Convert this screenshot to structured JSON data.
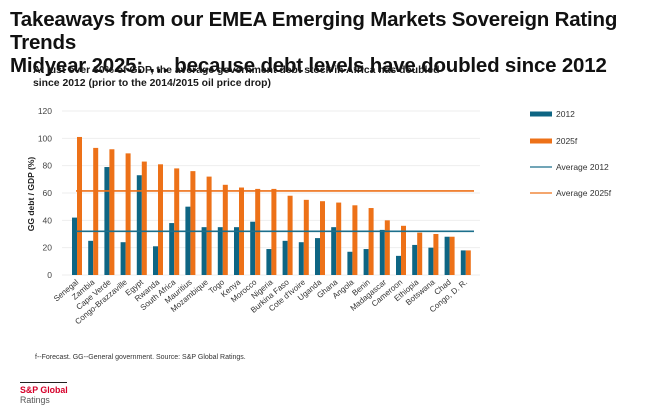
{
  "page": {
    "title_line1": "Takeaways from our EMEA Emerging Markets Sovereign Rating Trends",
    "title_line2": "Midyear 2025: … because debt levels have doubled since 2012",
    "subtitle_line1": "At just over 60% of GDP,  the average government debt stock in Africa has doubled",
    "subtitle_line2": "since 2012 (prior to the 2014/2015 oil price drop)",
    "footnote": "f--Forecast. GG--General government. Source: S&P Global Ratings.",
    "logo_top": "S&P Global",
    "logo_bottom": "Ratings"
  },
  "colors": {
    "series_2012": "#0e6583",
    "series_2025f": "#ed7118",
    "avg_2012": "#1c6f8c",
    "avg_2025f": "#ed7118",
    "grid": "#eeeeee",
    "brand_red": "#d6002a"
  },
  "chart_data": {
    "type": "bar",
    "title": "At just over 60% of GDP, the average government debt stock in Africa has doubled since 2012 (prior to the 2014/2015 oil price drop)",
    "xlabel": "",
    "ylabel": "GG debt / GDP (%)",
    "ylim": [
      0,
      120
    ],
    "yticks": [
      0,
      20,
      40,
      60,
      80,
      100,
      120
    ],
    "grid": true,
    "legend_position": "right",
    "categories": [
      "Senegal",
      "Zambia",
      "Cape Verde",
      "Congo-Brazzaville",
      "Egypt",
      "Rwanda",
      "South Africa",
      "Mauritius",
      "Mozambique",
      "Togo",
      "Kenya",
      "Morocco",
      "Nigeria",
      "Burkina Faso",
      "Cote d'Ivoire",
      "Uganda",
      "Ghana",
      "Angola",
      "Benin",
      "Madagascar",
      "Cameroon",
      "Ethiopia",
      "Botswana",
      "Chad",
      "Congo, D. R."
    ],
    "series": [
      {
        "name": "2012",
        "kind": "bar",
        "values": [
          42,
          25,
          79,
          24,
          73,
          21,
          38,
          50,
          35,
          35,
          35,
          39,
          19,
          25,
          24,
          27,
          35,
          17,
          19,
          33,
          14,
          22,
          20,
          28,
          18
        ]
      },
      {
        "name": "2025f",
        "kind": "bar",
        "values": [
          101,
          93,
          92,
          89,
          83,
          81,
          78,
          76,
          72,
          66,
          64,
          63,
          63,
          58,
          55,
          54,
          53,
          51,
          49,
          40,
          36,
          31,
          30,
          28,
          18
        ]
      },
      {
        "name": "Average 2012",
        "kind": "hline",
        "value": 32
      },
      {
        "name": "Average 2025f",
        "kind": "hline",
        "value": 61.5
      }
    ],
    "legend": [
      "2012",
      "2025f",
      "Average 2012",
      "Average 2025f"
    ]
  }
}
